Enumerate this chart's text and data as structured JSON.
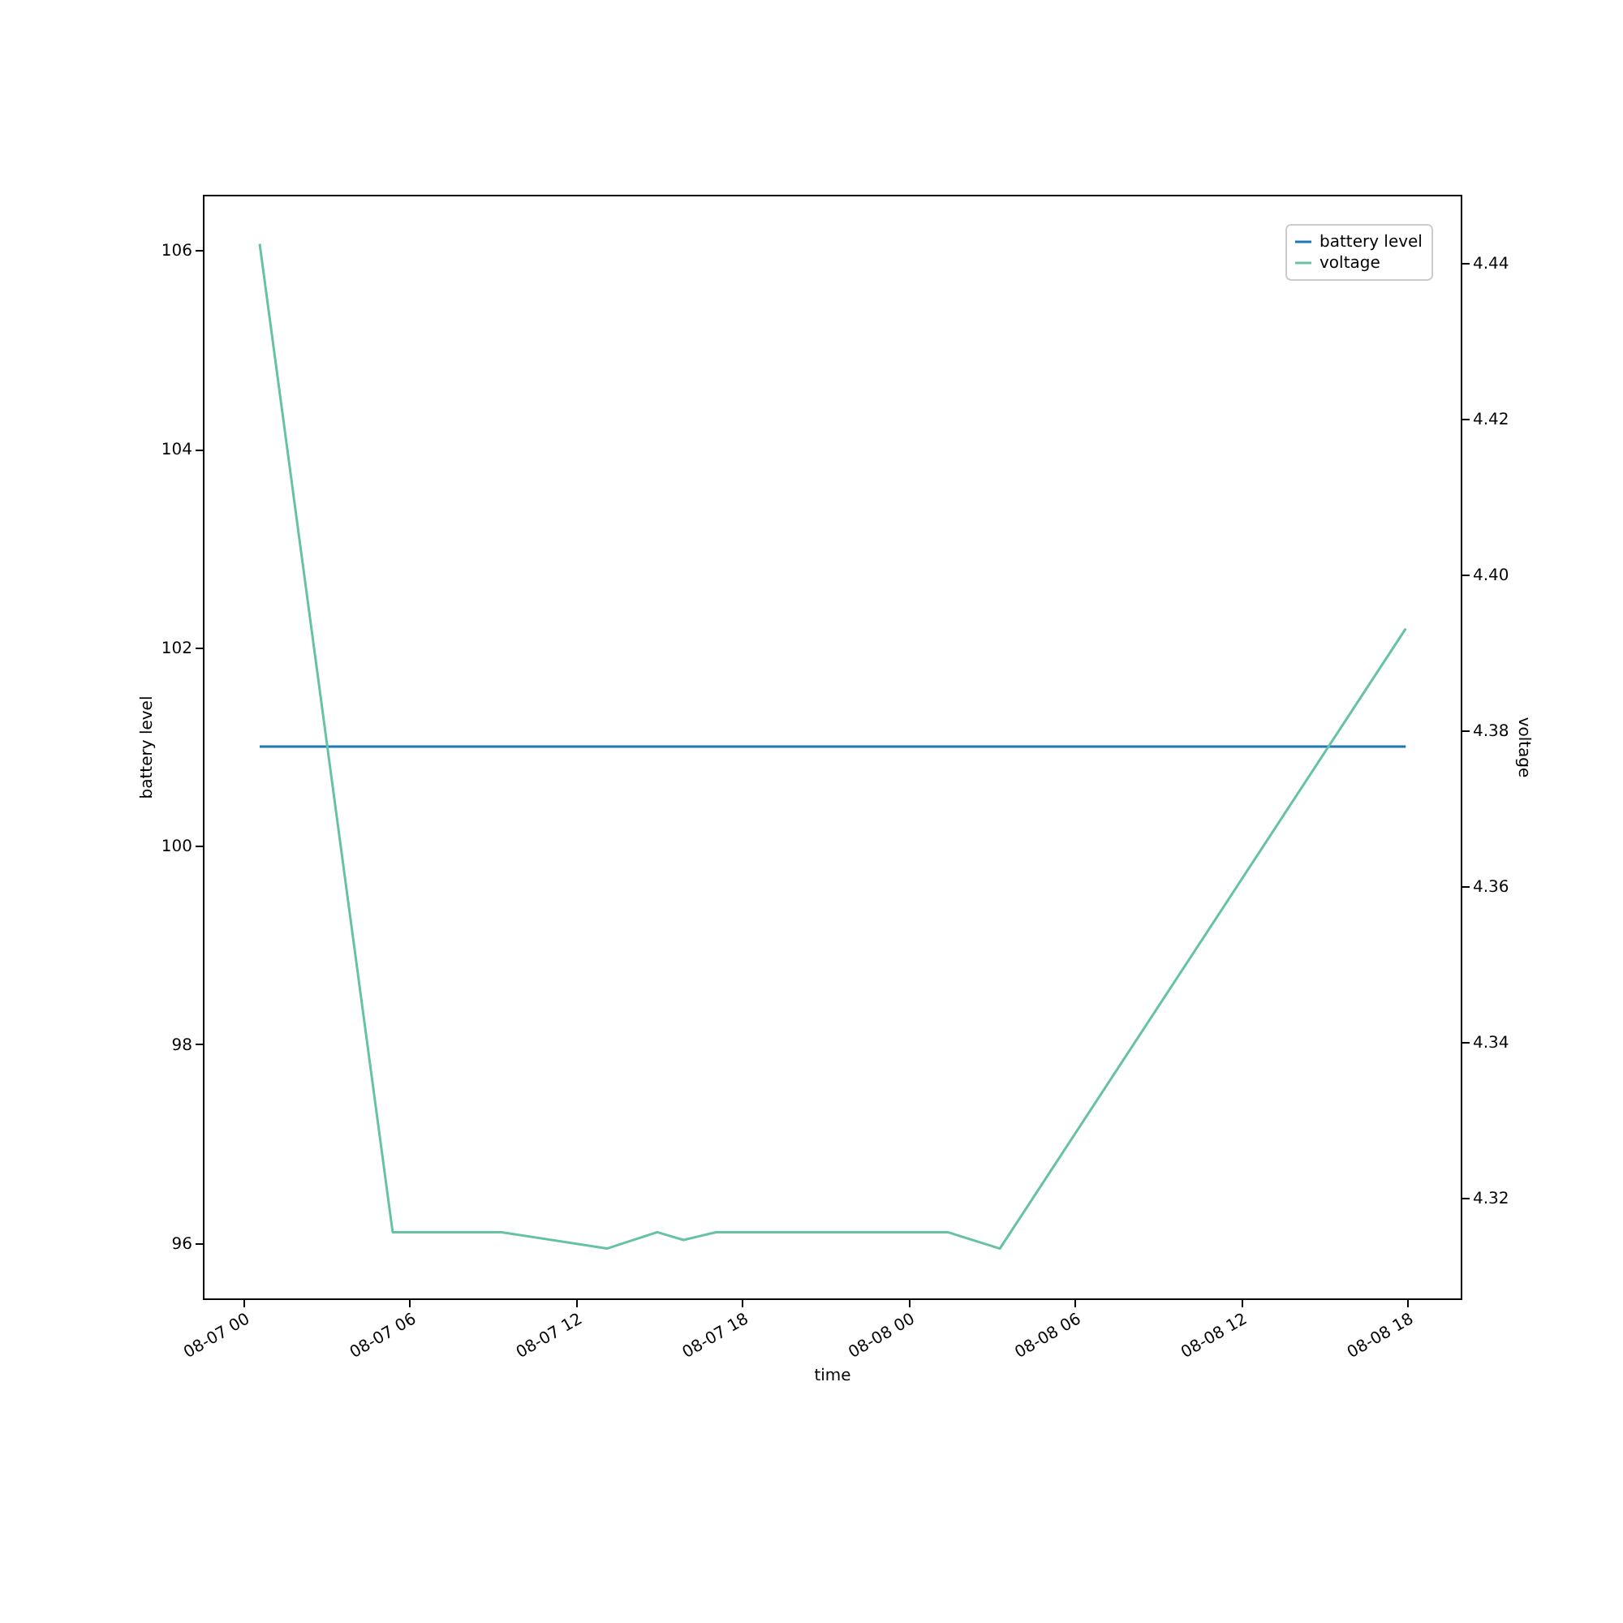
{
  "chart_data": {
    "type": "line",
    "xlabel": "time",
    "ylabel": "battery level",
    "y2label": "voltage",
    "xlim": [
      "--08-06T22:32",
      "--08-08T19:56"
    ],
    "xticks": [
      {
        "value": "--08-07T00:00",
        "label": "08-07 00"
      },
      {
        "value": "--08-07T06:00",
        "label": "08-07 06"
      },
      {
        "value": "--08-07T12:00",
        "label": "08-07 12"
      },
      {
        "value": "--08-07T18:00",
        "label": "08-07 18"
      },
      {
        "value": "--08-08T00:00",
        "label": "08-08 00"
      },
      {
        "value": "--08-08T06:00",
        "label": "08-08 06"
      },
      {
        "value": "--08-08T12:00",
        "label": "08-08 12"
      },
      {
        "value": "--08-08T18:00",
        "label": "08-08 18"
      }
    ],
    "ylim": [
      95.44,
      106.56
    ],
    "yticks": [
      96,
      98,
      100,
      102,
      104,
      106
    ],
    "y2lim": [
      4.3071,
      4.4488
    ],
    "y2ticks": [
      4.32,
      4.34,
      4.36,
      4.38,
      {
        "value": 4.4,
        "label": "4.40"
      },
      4.42,
      4.44
    ],
    "x": [
      "--08-07T00:35",
      "--08-07T05:23",
      "--08-07T09:19",
      "--08-07T13:07",
      "--08-07T14:56",
      "--08-07T15:53",
      "--08-07T17:03",
      "--08-08T01:25",
      "--08-08T03:18",
      "--08-08T17:57"
    ],
    "series": [
      {
        "name": "battery level",
        "color": "#1f77b4",
        "values": [
          101,
          101,
          101,
          101,
          101,
          101,
          101,
          101,
          101,
          101
        ]
      },
      {
        "name": "voltage",
        "color": "#66c2a5",
        "axis": "y2",
        "values": [
          4.4425,
          4.3156,
          4.3156,
          4.3135,
          4.3156,
          4.3146,
          4.3156,
          4.3156,
          4.3135,
          4.3931
        ]
      }
    ],
    "legend": "top right",
    "grid": false,
    "marker": "none",
    "line_style": "solid"
  }
}
